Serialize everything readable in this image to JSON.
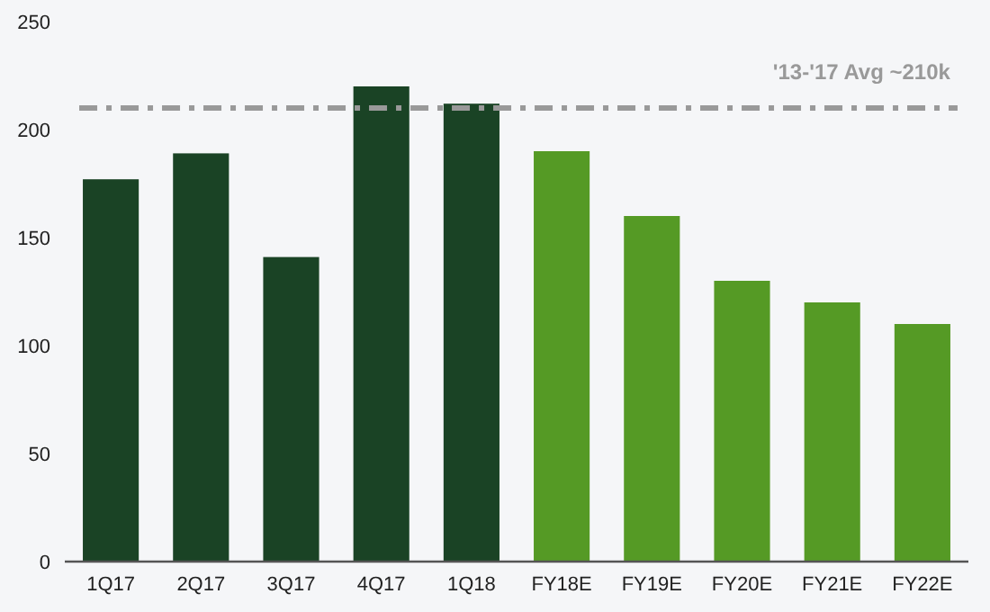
{
  "chart_data": {
    "type": "bar",
    "categories": [
      "1Q17",
      "2Q17",
      "3Q17",
      "4Q17",
      "1Q18",
      "FY18E",
      "FY19E",
      "FY20E",
      "FY21E",
      "FY22E"
    ],
    "values": [
      177,
      189,
      141,
      220,
      212,
      190,
      160,
      130,
      120,
      110
    ],
    "colors": [
      "#1a4325",
      "#1a4325",
      "#1a4325",
      "#1a4325",
      "#1a4325",
      "#559a25",
      "#559a25",
      "#559a25",
      "#559a25",
      "#559a25"
    ],
    "ylim": [
      0,
      250
    ],
    "yticks": [
      0,
      50,
      100,
      150,
      200,
      250
    ],
    "grid": false,
    "ref_lines": [
      {
        "axis": "y",
        "value": 210,
        "label": "'13-'17 Avg ~210k",
        "color": "#999999",
        "line_style": "dashdot"
      }
    ]
  }
}
